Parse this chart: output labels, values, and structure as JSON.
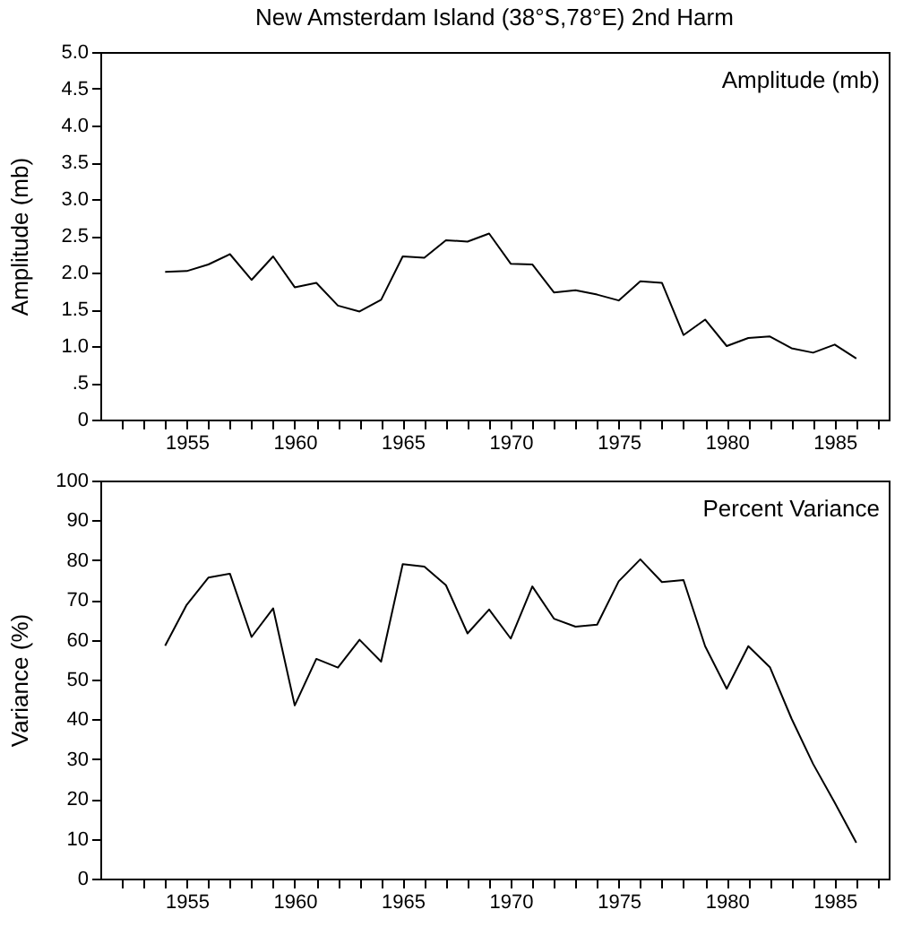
{
  "chart_data": [
    {
      "type": "line",
      "title": "New Amsterdam Island (38°S,78°E)    2nd Harm",
      "ylabel": "Amplitude (mb)",
      "annotations": [
        "Amplitude (mb)"
      ],
      "x": [
        1954,
        1955,
        1956,
        1957,
        1958,
        1959,
        1960,
        1961,
        1962,
        1963,
        1964,
        1965,
        1966,
        1967,
        1968,
        1969,
        1970,
        1971,
        1972,
        1973,
        1974,
        1975,
        1976,
        1977,
        1978,
        1979,
        1980,
        1981,
        1982,
        1983,
        1984,
        1985,
        1986
      ],
      "series": [
        {
          "color": "#000000",
          "values": [
            2.01,
            2.02,
            2.11,
            2.25,
            1.9,
            2.22,
            1.8,
            1.86,
            1.55,
            1.47,
            1.63,
            2.22,
            2.2,
            2.44,
            2.42,
            2.53,
            2.12,
            2.11,
            1.73,
            1.76,
            1.7,
            1.62,
            1.88,
            1.86,
            1.15,
            1.36,
            1.0,
            1.11,
            1.13,
            0.97,
            0.91,
            1.02,
            0.83
          ]
        }
      ],
      "xlim": [
        1951,
        1987.5
      ],
      "ylim": [
        0,
        5
      ],
      "xticks": [
        {
          "value": 1952,
          "label": null
        },
        {
          "value": 1953,
          "label": null
        },
        {
          "value": 1954,
          "label": null
        },
        1955,
        {
          "value": 1956,
          "label": null
        },
        {
          "value": 1957,
          "label": null
        },
        {
          "value": 1958,
          "label": null
        },
        {
          "value": 1959,
          "label": null
        },
        1960,
        {
          "value": 1961,
          "label": null
        },
        {
          "value": 1962,
          "label": null
        },
        {
          "value": 1963,
          "label": null
        },
        {
          "value": 1964,
          "label": null
        },
        1965,
        {
          "value": 1966,
          "label": null
        },
        {
          "value": 1967,
          "label": null
        },
        {
          "value": 1968,
          "label": null
        },
        {
          "value": 1969,
          "label": null
        },
        1970,
        {
          "value": 1971,
          "label": null
        },
        {
          "value": 1972,
          "label": null
        },
        {
          "value": 1973,
          "label": null
        },
        {
          "value": 1974,
          "label": null
        },
        1975,
        {
          "value": 1976,
          "label": null
        },
        {
          "value": 1977,
          "label": null
        },
        {
          "value": 1978,
          "label": null
        },
        {
          "value": 1979,
          "label": null
        },
        1980,
        {
          "value": 1981,
          "label": null
        },
        {
          "value": 1982,
          "label": null
        },
        {
          "value": 1983,
          "label": null
        },
        {
          "value": 1984,
          "label": null
        },
        1985,
        {
          "value": 1986,
          "label": null
        },
        {
          "value": 1987,
          "label": null
        }
      ],
      "yticks": [
        0,
        {
          "value": 0.5,
          "label": ".5"
        },
        {
          "value": 1,
          "label": "1.0"
        },
        1.5,
        {
          "value": 2,
          "label": "2.0"
        },
        2.5,
        {
          "value": 3,
          "label": "3.0"
        },
        3.5,
        {
          "value": 4,
          "label": "4.0"
        },
        4.5,
        {
          "value": 5,
          "label": "5.0"
        }
      ],
      "grid": false
    },
    {
      "type": "line",
      "ylabel": "Variance (%)",
      "annotations": [
        "Percent Variance"
      ],
      "x": [
        1954,
        1955,
        1956,
        1957,
        1958,
        1959,
        1960,
        1961,
        1962,
        1963,
        1964,
        1965,
        1966,
        1967,
        1968,
        1969,
        1970,
        1971,
        1972,
        1973,
        1974,
        1975,
        1976,
        1977,
        1978,
        1979,
        1980,
        1981,
        1982,
        1983,
        1984,
        1985,
        1986
      ],
      "series": [
        {
          "color": "#000000",
          "values": [
            58.5,
            68.8,
            75.6,
            76.6,
            60.7,
            67.9,
            43.5,
            55.2,
            53,
            60,
            54.5,
            79,
            78.4,
            73.7,
            61.6,
            67.6,
            60.3,
            73.4,
            65.3,
            63.3,
            63.8,
            74.7,
            80.2,
            74.5,
            75,
            58.4,
            47.7,
            58.4,
            53.1,
            40.2,
            28.8,
            19.1,
            9
          ]
        }
      ],
      "xlim": [
        1951,
        1987.5
      ],
      "ylim": [
        0,
        100
      ],
      "xticks": [
        {
          "value": 1952,
          "label": null
        },
        {
          "value": 1953,
          "label": null
        },
        {
          "value": 1954,
          "label": null
        },
        1955,
        {
          "value": 1956,
          "label": null
        },
        {
          "value": 1957,
          "label": null
        },
        {
          "value": 1958,
          "label": null
        },
        {
          "value": 1959,
          "label": null
        },
        1960,
        {
          "value": 1961,
          "label": null
        },
        {
          "value": 1962,
          "label": null
        },
        {
          "value": 1963,
          "label": null
        },
        {
          "value": 1964,
          "label": null
        },
        1965,
        {
          "value": 1966,
          "label": null
        },
        {
          "value": 1967,
          "label": null
        },
        {
          "value": 1968,
          "label": null
        },
        {
          "value": 1969,
          "label": null
        },
        1970,
        {
          "value": 1971,
          "label": null
        },
        {
          "value": 1972,
          "label": null
        },
        {
          "value": 1973,
          "label": null
        },
        {
          "value": 1974,
          "label": null
        },
        1975,
        {
          "value": 1976,
          "label": null
        },
        {
          "value": 1977,
          "label": null
        },
        {
          "value": 1978,
          "label": null
        },
        {
          "value": 1979,
          "label": null
        },
        1980,
        {
          "value": 1981,
          "label": null
        },
        {
          "value": 1982,
          "label": null
        },
        {
          "value": 1983,
          "label": null
        },
        {
          "value": 1984,
          "label": null
        },
        1985,
        {
          "value": 1986,
          "label": null
        },
        {
          "value": 1987,
          "label": null
        }
      ],
      "yticks": [
        0,
        10,
        20,
        30,
        40,
        50,
        60,
        70,
        80,
        90,
        100
      ],
      "grid": false
    }
  ]
}
